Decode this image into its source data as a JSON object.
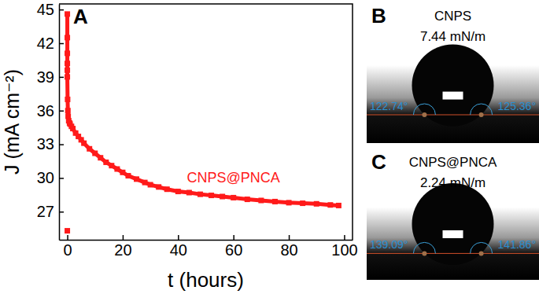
{
  "chart_data": {
    "type": "line",
    "annotations": [
      "A"
    ],
    "x_label": "t (hours)",
    "y_label": "J (mA cm⁻²)",
    "x": [
      0,
      0,
      0,
      0,
      0,
      0,
      0,
      0,
      0.1,
      0.2,
      0.3,
      0.5,
      0.8,
      1,
      1.5,
      2,
      3,
      4,
      5,
      6,
      8,
      10,
      12,
      14,
      16,
      18,
      20,
      22,
      25,
      28,
      30,
      33,
      36,
      40,
      44,
      48,
      52,
      56,
      60,
      65,
      70,
      75,
      80,
      85,
      90,
      95,
      98
    ],
    "series": [
      {
        "name": "CNPS@PNCA",
        "color": "#ff1a1a",
        "marker": "square",
        "values": [
          25.3,
          null,
          44.6,
          42.5,
          41.1,
          40.2,
          39.6,
          39.0,
          37.0,
          36.0,
          35.5,
          35.1,
          34.9,
          34.8,
          34.6,
          34.4,
          34.0,
          33.7,
          33.4,
          33.1,
          32.6,
          32.2,
          31.8,
          31.4,
          31.1,
          30.8,
          30.5,
          30.2,
          29.9,
          29.6,
          29.4,
          29.2,
          29.0,
          28.8,
          28.7,
          28.55,
          28.45,
          28.35,
          28.25,
          28.1,
          28.0,
          27.9,
          27.8,
          27.75,
          27.7,
          27.6,
          27.55
        ]
      }
    ],
    "xlim": [
      -3,
      103
    ],
    "xticks": [
      0,
      20,
      40,
      60,
      80,
      100
    ],
    "ylim": [
      24.5,
      45.5
    ],
    "yticks": [
      27,
      30,
      33,
      36,
      39,
      42,
      45
    ],
    "grid": false
  },
  "photos": [
    {
      "panel": "B",
      "sample": "CNPS",
      "surface_tension": "7.44 mN/m",
      "contact_angles": [
        "122.74°",
        "125.36°"
      ]
    },
    {
      "panel": "C",
      "sample": "CNPS@PNCA",
      "surface_tension": "2.24 mN/m",
      "contact_angles": [
        "139.09°",
        "141.86°"
      ]
    }
  ]
}
